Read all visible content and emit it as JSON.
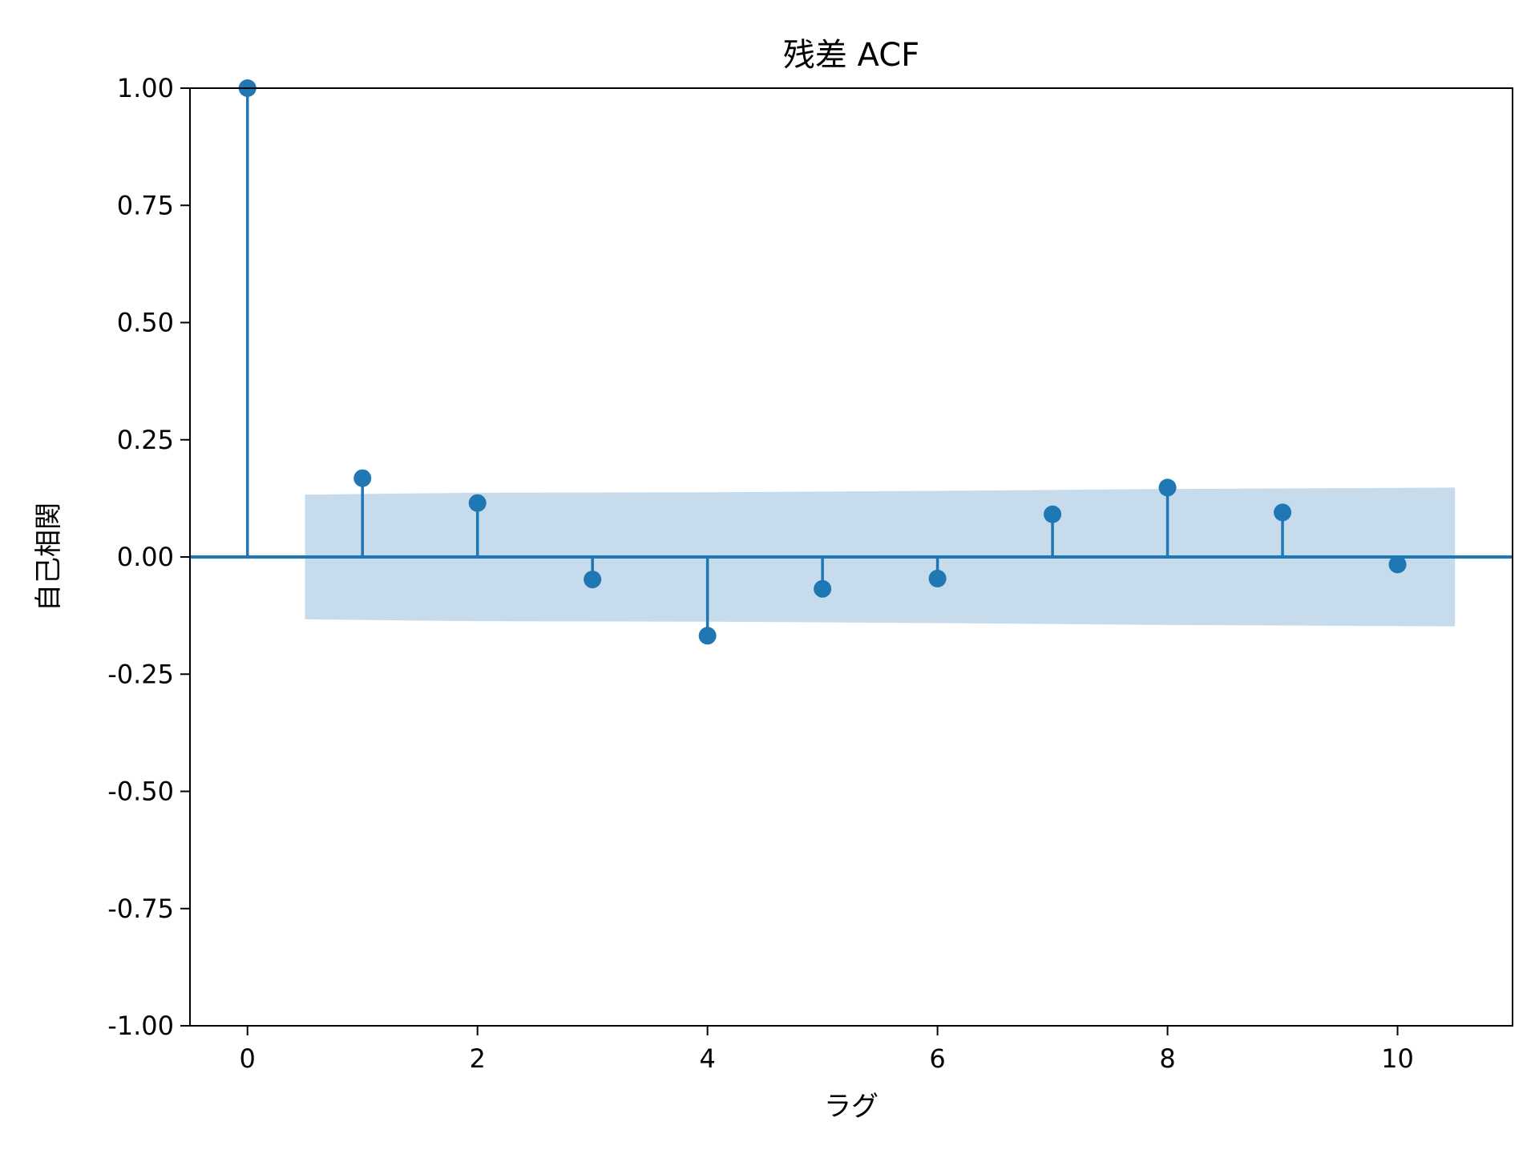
{
  "chart_data": {
    "type": "stem",
    "title": "残差 ACF",
    "xlabel": "ラグ",
    "ylabel": "自己相関",
    "xlim": [
      -0.5,
      11
    ],
    "ylim": [
      -1,
      1
    ],
    "x_ticks": [
      0,
      2,
      4,
      6,
      8,
      10
    ],
    "x_tick_labels": [
      "0",
      "2",
      "4",
      "6",
      "8",
      "10"
    ],
    "y_ticks": [
      1,
      0.75,
      0.5,
      0.25,
      0,
      -0.25,
      -0.5,
      -0.75,
      -1
    ],
    "y_tick_labels": [
      "1.00",
      "0.75",
      "0.50",
      "0.25",
      "0.00",
      "-0.25",
      "-0.50",
      "-0.75",
      "-1.00"
    ],
    "grid": false,
    "colors": {
      "series": "#1f77b4",
      "band": "#c6dbec",
      "zero_line": "#1f77b4"
    },
    "acf": {
      "lags": [
        0,
        1,
        2,
        3,
        4,
        5,
        6,
        7,
        8,
        9,
        10
      ],
      "values": [
        1.0,
        0.168,
        0.115,
        -0.048,
        -0.168,
        -0.068,
        -0.046,
        0.091,
        0.148,
        0.095,
        -0.016
      ]
    },
    "confidence_band": {
      "x": [
        0.5,
        2,
        4,
        6,
        8,
        10.5
      ],
      "upper": [
        0.133,
        0.137,
        0.138,
        0.141,
        0.145,
        0.148
      ],
      "lower": [
        -0.133,
        -0.137,
        -0.138,
        -0.141,
        -0.145,
        -0.148
      ]
    }
  }
}
